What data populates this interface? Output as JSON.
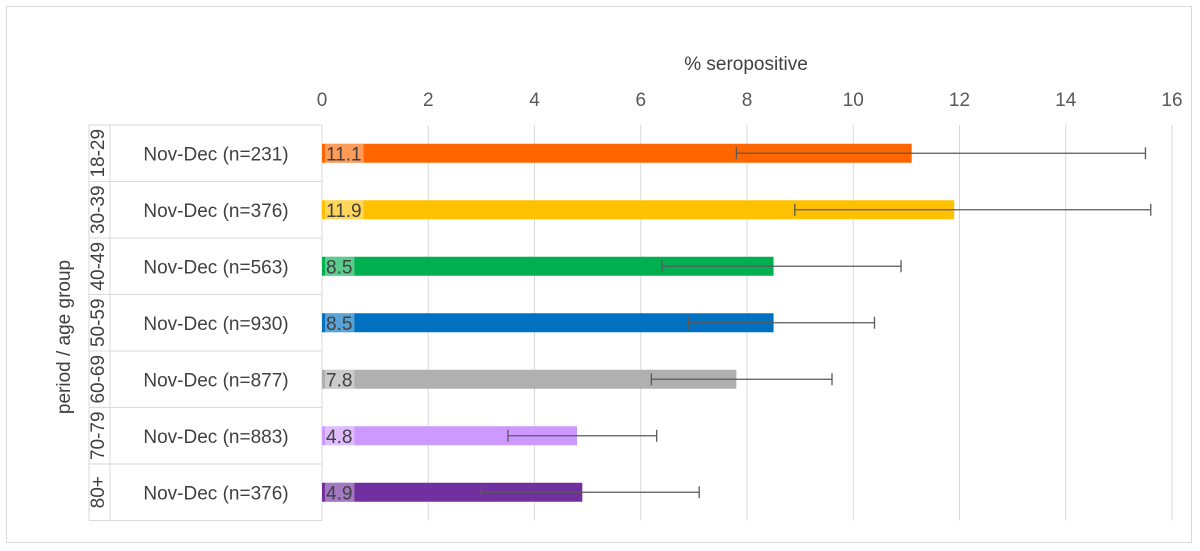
{
  "chart_data": {
    "type": "bar",
    "orientation": "horizontal",
    "xlabel": "% seropositive",
    "ylabel": "period / age group",
    "xlim": [
      0,
      16
    ],
    "xticks": [
      "0",
      "2",
      "4",
      "6",
      "8",
      "10",
      "12",
      "14",
      "16"
    ],
    "grid": true,
    "legend": "none",
    "categories": [
      {
        "group": "18-29",
        "period": "Nov-Dec (n=231)"
      },
      {
        "group": "30-39",
        "period": "Nov-Dec (n=376)"
      },
      {
        "group": "40-49",
        "period": "Nov-Dec (n=563)"
      },
      {
        "group": "50-59",
        "period": "Nov-Dec (n=930)"
      },
      {
        "group": "60-69",
        "period": "Nov-Dec (n=877)"
      },
      {
        "group": "70-79",
        "period": "Nov-Dec (n=883)"
      },
      {
        "group": "80+",
        "period": "Nov-Dec (n=376)"
      }
    ],
    "values": [
      11.1,
      11.9,
      8.5,
      8.5,
      7.8,
      4.8,
      4.9
    ],
    "value_labels": [
      "11.1",
      "11.9",
      "8.5",
      "8.5",
      "7.8",
      "4.8",
      "4.9"
    ],
    "error_low": [
      7.8,
      8.9,
      6.4,
      6.9,
      6.2,
      3.5,
      3.0
    ],
    "error_high": [
      15.5,
      15.6,
      10.9,
      10.4,
      9.6,
      6.3,
      7.1
    ],
    "colors": [
      "#ff6600",
      "#ffc000",
      "#00b050",
      "#0070c0",
      "#b0b0b0",
      "#cc99ff",
      "#7030a0"
    ]
  }
}
